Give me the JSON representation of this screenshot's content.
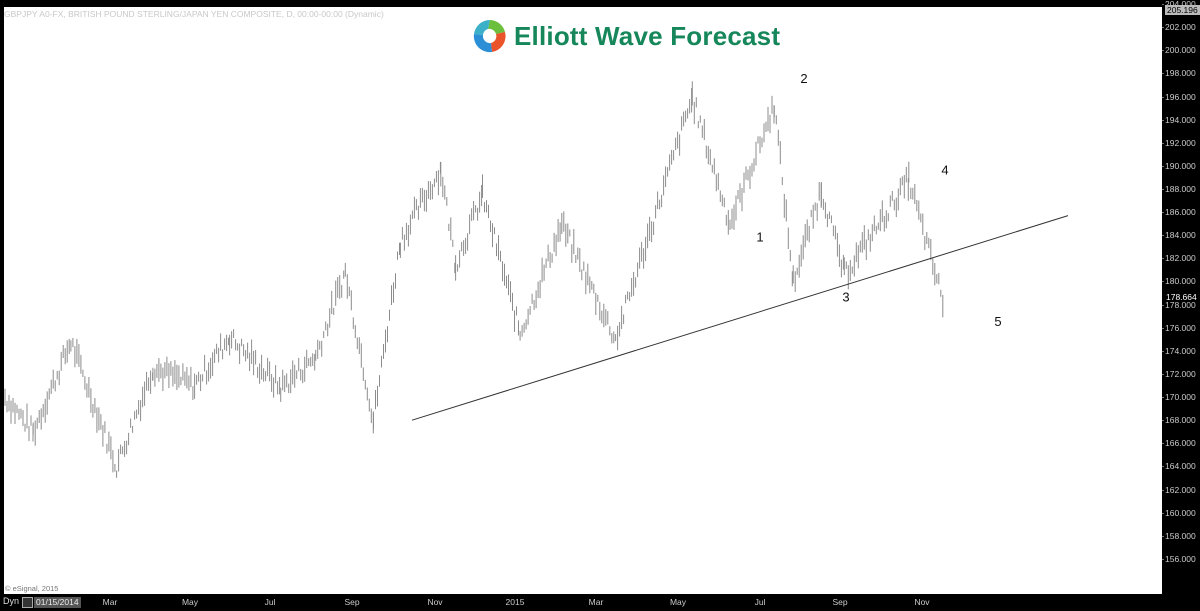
{
  "header": {
    "symbol_line": "GBPJPY A0-FX, BRITISH POUND STERLING/JAPAN YEN COMPOSITE, D, 00:00-00:00 (Dynamic)",
    "logo_text": "Elliott Wave Forecast",
    "brand_color": "#16875a"
  },
  "footer": {
    "copyright": "© eSignal, 2015",
    "dyn_label": "Dyn",
    "start_date": "01/15/2014"
  },
  "chart_data": {
    "type": "ohlc_bar",
    "title": "GBPJPY A0-FX, BRITISH POUND STERLING/JAPAN YEN COMPOSITE, D, 00:00-00:00 (Dynamic)",
    "instrument": "GBPJPY",
    "timeframe": "Daily",
    "xlabel": "",
    "ylabel": "",
    "ylim": [
      154.5,
      205.5
    ],
    "y_ticks": [
      "204.000",
      "202.000",
      "200.000",
      "198.000",
      "196.000",
      "194.000",
      "192.000",
      "190.000",
      "188.000",
      "186.000",
      "184.000",
      "182.000",
      "180.000",
      "178.000",
      "176.000",
      "174.000",
      "172.000",
      "170.000",
      "168.000",
      "166.000",
      "164.000",
      "162.000",
      "160.000",
      "158.000",
      "156.000"
    ],
    "x_ticks": [
      "Mar",
      "May",
      "Jul",
      "Sep",
      "Nov",
      "2015",
      "Mar",
      "May",
      "Jul",
      "Sep",
      "Nov"
    ],
    "last_price_label": "178.664",
    "top_price_label": "205.196",
    "grid": false,
    "bar_color": "#8c8c8c",
    "key_points": [
      {
        "date": "2014-01-15",
        "price": 170.0
      },
      {
        "date": "2014-02-05",
        "price": 167.0
      },
      {
        "date": "2014-03-05",
        "price": 174.8
      },
      {
        "date": "2014-04-08",
        "price": 164.0
      },
      {
        "date": "2014-05-05",
        "price": 172.5
      },
      {
        "date": "2014-06-05",
        "price": 171.0
      },
      {
        "date": "2014-07-01",
        "price": 175.2
      },
      {
        "date": "2014-08-08",
        "price": 170.8
      },
      {
        "date": "2014-09-03",
        "price": 173.5
      },
      {
        "date": "2014-09-25",
        "price": 180.8
      },
      {
        "date": "2014-10-16",
        "price": 168.0
      },
      {
        "date": "2014-11-05",
        "price": 183.5
      },
      {
        "date": "2014-12-05",
        "price": 189.7
      },
      {
        "date": "2014-12-16",
        "price": 181.5
      },
      {
        "date": "2015-01-05",
        "price": 187.5
      },
      {
        "date": "2015-02-02",
        "price": 175.5
      },
      {
        "date": "2015-03-05",
        "price": 184.9
      },
      {
        "date": "2015-04-14",
        "price": 175.0
      },
      {
        "date": "2015-06-10",
        "price": 195.9
      },
      {
        "date": "2015-07-08",
        "price": 185.0
      },
      {
        "date": "2015-08-10",
        "price": 195.3
      },
      {
        "date": "2015-08-24",
        "price": 180.0
      },
      {
        "date": "2015-09-14",
        "price": 188.0
      },
      {
        "date": "2015-10-01",
        "price": 180.6
      },
      {
        "date": "2015-11-18",
        "price": 188.8
      },
      {
        "date": "2015-12-14",
        "price": 178.1
      }
    ],
    "trendline": {
      "from": {
        "date": "2014-10-16",
        "price": 168.0
      },
      "to": {
        "date": "2015-12-31",
        "price": 185.7
      }
    },
    "annotations": [
      {
        "label": "1",
        "date": "2015-07-08",
        "price": 183.8
      },
      {
        "label": "2",
        "date": "2015-07-28",
        "price": 197.5
      },
      {
        "label": "3",
        "date": "2015-09-01",
        "price": 178.6
      },
      {
        "label": "4",
        "date": "2015-11-18",
        "price": 189.6
      },
      {
        "label": "5",
        "date": "2015-12-16",
        "price": 176.5
      }
    ]
  }
}
